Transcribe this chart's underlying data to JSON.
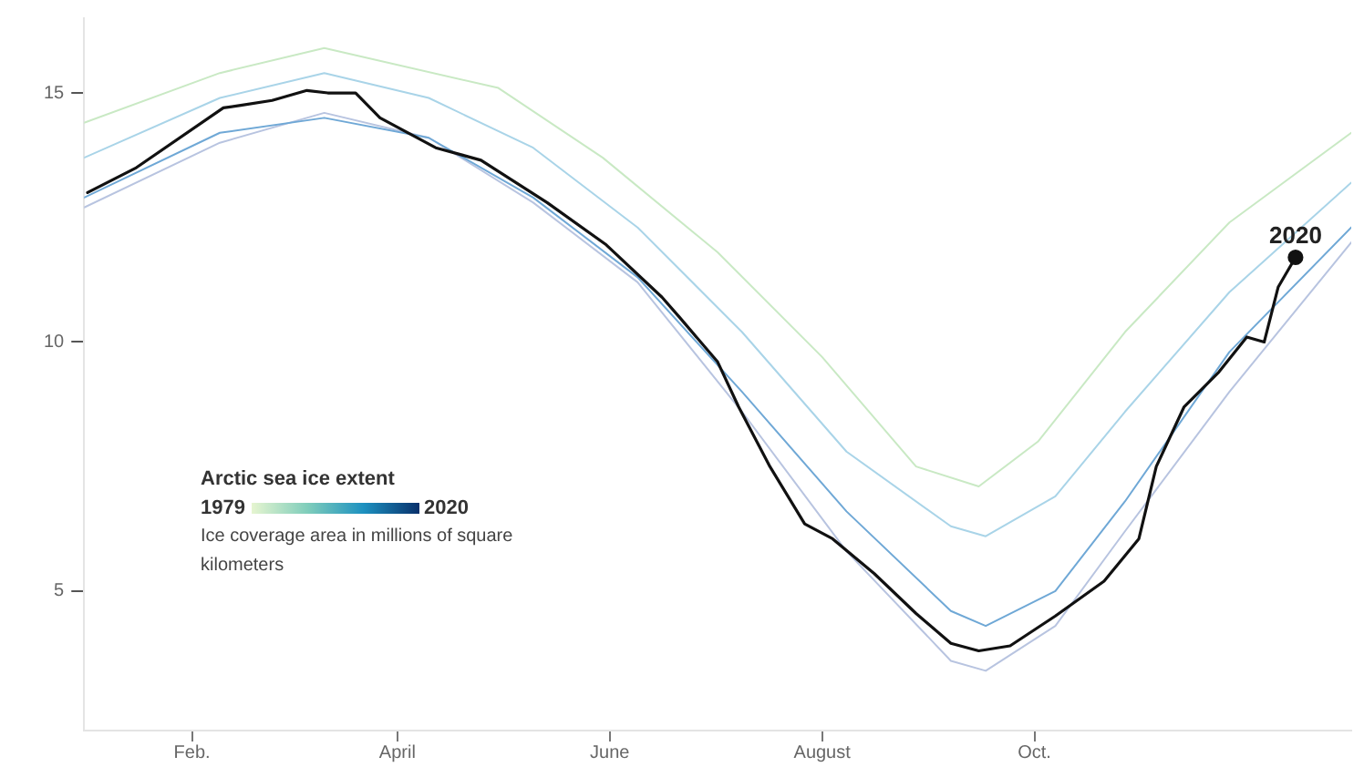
{
  "chart_data": {
    "type": "line",
    "annotations": [
      "Arctic sea ice extent",
      "1979",
      "2020"
    ],
    "ylabel": "Ice coverage area in millions of square kilometers",
    "xlim": [
      "--01-01",
      "--12-31"
    ],
    "xticks": [
      {
        "value": "--02-01",
        "label": "Feb."
      },
      {
        "value": "--04-01",
        "label": "April"
      },
      {
        "value": "--06-01",
        "label": "June"
      },
      {
        "value": "--08-01",
        "label": "August"
      },
      {
        "value": "--10-01",
        "label": "Oct."
      }
    ],
    "ylim": [
      2.2,
      16.5
    ],
    "yticks": [
      5,
      10,
      15
    ],
    "grid": false,
    "marker": "none",
    "line_style": "solid",
    "series": [
      {
        "color": "#c9e9c4",
        "x": [
          "--01-01",
          "--02-09",
          "--03-11",
          "--04-30",
          "--05-30",
          "--07-02",
          "--08-01",
          "--08-28",
          "--09-15",
          "--10-02",
          "--10-27",
          "--11-26",
          "--12-31"
        ],
        "values": [
          14.4,
          15.4,
          15.9,
          15.1,
          13.7,
          11.8,
          9.7,
          7.5,
          7.1,
          8.0,
          10.2,
          12.4,
          14.2
        ]
      },
      {
        "color": "#a9d4e8",
        "x": [
          "--01-01",
          "--02-09",
          "--03-11",
          "--04-10",
          "--05-10",
          "--06-09",
          "--07-09",
          "--08-08",
          "--09-07",
          "--09-17",
          "--10-07",
          "--10-27",
          "--11-26",
          "--12-31"
        ],
        "values": [
          13.7,
          14.9,
          15.4,
          14.9,
          13.9,
          12.3,
          10.2,
          7.8,
          6.3,
          6.1,
          6.9,
          8.6,
          11.0,
          13.2
        ]
      },
      {
        "color": "#6fa8d6",
        "x": [
          "--01-01",
          "--02-09",
          "--03-11",
          "--04-10",
          "--05-10",
          "--06-09",
          "--07-09",
          "--08-08",
          "--09-07",
          "--09-17",
          "--10-07",
          "--10-27",
          "--11-26",
          "--12-31"
        ],
        "values": [
          12.9,
          14.2,
          14.5,
          14.1,
          12.9,
          11.3,
          9.0,
          6.6,
          4.6,
          4.3,
          5.0,
          6.8,
          9.8,
          12.3
        ]
      },
      {
        "color": "#b8c4e0",
        "x": [
          "--01-01",
          "--02-09",
          "--03-11",
          "--04-10",
          "--05-10",
          "--06-09",
          "--07-09",
          "--08-08",
          "--09-07",
          "--09-17",
          "--10-07",
          "--10-27",
          "--11-26",
          "--12-31"
        ],
        "values": [
          12.7,
          14.0,
          14.6,
          14.1,
          12.8,
          11.2,
          8.6,
          5.8,
          3.6,
          3.4,
          4.3,
          6.2,
          9.0,
          12.0
        ]
      },
      {
        "name": "2020",
        "color": "#111111",
        "x": [
          "--01-02",
          "--01-16",
          "--02-10",
          "--02-15",
          "--02-24",
          "--03-06",
          "--03-12",
          "--03-20",
          "--03-27",
          "--04-12",
          "--04-25",
          "--05-14",
          "--05-31",
          "--06-16",
          "--06-21",
          "--07-02",
          "--07-08",
          "--07-17",
          "--07-27",
          "--08-04",
          "--08-16",
          "--08-28",
          "--09-07",
          "--09-15",
          "--09-24",
          "--10-07",
          "--10-21",
          "--10-31",
          "--11-05",
          "--11-13",
          "--11-23",
          "--12-01",
          "--12-06",
          "--12-10",
          "--12-15"
        ],
        "values": [
          13.0,
          13.5,
          14.7,
          14.75,
          14.85,
          15.05,
          15.0,
          15.0,
          14.5,
          13.9,
          13.65,
          12.8,
          11.95,
          10.9,
          10.5,
          9.6,
          8.7,
          7.5,
          6.35,
          6.05,
          5.35,
          4.55,
          3.95,
          3.8,
          3.9,
          4.5,
          5.2,
          6.05,
          7.5,
          8.7,
          9.4,
          10.1,
          10.0,
          11.1,
          11.7
        ]
      }
    ]
  }
}
